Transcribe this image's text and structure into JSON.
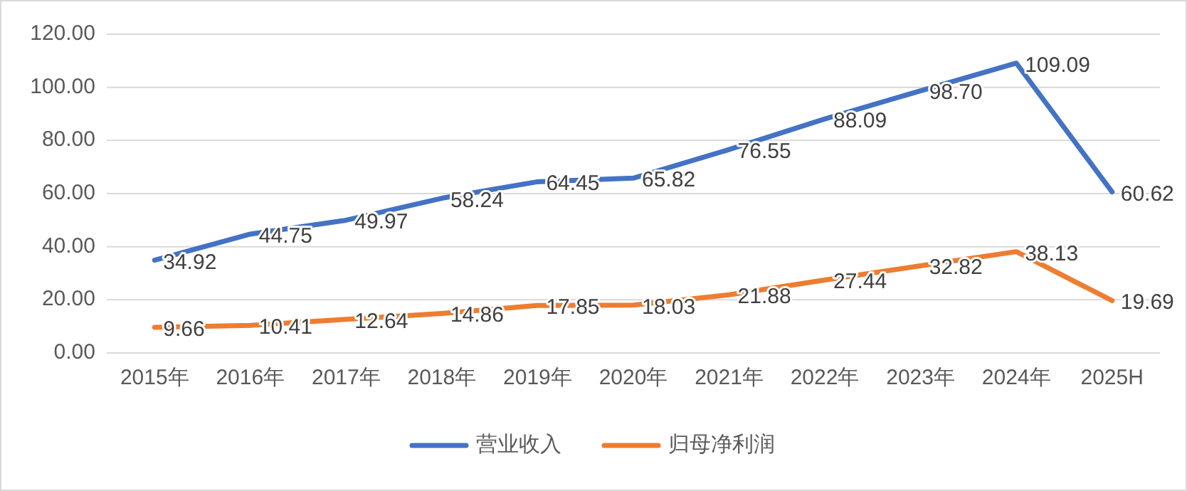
{
  "chart_data": {
    "type": "line",
    "categories": [
      "2015年",
      "2016年",
      "2017年",
      "2018年",
      "2019年",
      "2020年",
      "2021年",
      "2022年",
      "2023年",
      "2024年",
      "2025H"
    ],
    "series": [
      {
        "name": "营业收入",
        "color": "#4472c4",
        "values": [
          34.92,
          44.75,
          49.97,
          58.24,
          64.45,
          65.82,
          76.55,
          88.09,
          98.7,
          109.09,
          60.62
        ],
        "value_labels": [
          "34.92",
          "44.75",
          "49.97",
          "58.24",
          "64.45",
          "65.82",
          "76.55",
          "88.09",
          "98.70",
          "109.09",
          "60.62"
        ]
      },
      {
        "name": "归母净利润",
        "color": "#ed7d31",
        "values": [
          9.66,
          10.41,
          12.64,
          14.86,
          17.85,
          18.03,
          21.88,
          27.44,
          32.82,
          38.13,
          19.69
        ],
        "value_labels": [
          "9.66",
          "10.41",
          "12.64",
          "14.86",
          "17.85",
          "18.03",
          "21.88",
          "27.44",
          "32.82",
          "38.13",
          "19.69"
        ]
      }
    ],
    "ylim": [
      0,
      120
    ],
    "yticks": [
      {
        "value": 0,
        "label": "0.00"
      },
      {
        "value": 20,
        "label": "20.00"
      },
      {
        "value": 40,
        "label": "40.00"
      },
      {
        "value": 60,
        "label": "60.00"
      },
      {
        "value": 80,
        "label": "80.00"
      },
      {
        "value": 100,
        "label": "100.00"
      },
      {
        "value": 120,
        "label": "120.00"
      }
    ],
    "grid": "y",
    "legend": "bottom",
    "marker": "none",
    "line_style": "solid"
  }
}
